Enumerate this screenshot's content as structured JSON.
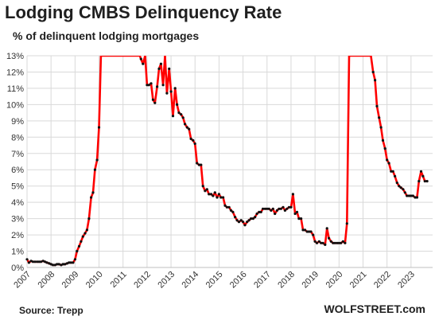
{
  "chart_data": {
    "type": "line",
    "title": "Lodging CMBS Delinquency Rate",
    "subtitle": "% of delinquent lodging mortgages",
    "source": "Source: Trepp",
    "brand": "WOLFSTREET.com",
    "ylim": [
      0,
      13
    ],
    "xlim": [
      2007,
      2023.9
    ],
    "y_ticks": [
      "0%",
      "1%",
      "2%",
      "3%",
      "4%",
      "5%",
      "6%",
      "7%",
      "8%",
      "9%",
      "10%",
      "11%",
      "12%",
      "13%"
    ],
    "x_ticks": [
      "2007",
      "2008",
      "2009",
      "2010",
      "2011",
      "2012",
      "2013",
      "2014",
      "2015",
      "2016",
      "2017",
      "2018",
      "2019",
      "2020",
      "2021",
      "2022",
      "2023"
    ],
    "grid": true,
    "series": [
      {
        "color": "#ff0000",
        "points": [
          [
            2007.0,
            0.5
          ],
          [
            2007.08,
            0.3
          ],
          [
            2007.17,
            0.4
          ],
          [
            2007.25,
            0.35
          ],
          [
            2007.33,
            0.35
          ],
          [
            2007.42,
            0.35
          ],
          [
            2007.5,
            0.35
          ],
          [
            2007.58,
            0.35
          ],
          [
            2007.67,
            0.4
          ],
          [
            2007.75,
            0.35
          ],
          [
            2007.83,
            0.3
          ],
          [
            2007.92,
            0.25
          ],
          [
            2008.0,
            0.2
          ],
          [
            2008.08,
            0.15
          ],
          [
            2008.17,
            0.15
          ],
          [
            2008.25,
            0.2
          ],
          [
            2008.33,
            0.2
          ],
          [
            2008.42,
            0.15
          ],
          [
            2008.5,
            0.2
          ],
          [
            2008.58,
            0.2
          ],
          [
            2008.67,
            0.25
          ],
          [
            2008.75,
            0.3
          ],
          [
            2008.83,
            0.3
          ],
          [
            2008.92,
            0.3
          ],
          [
            2009.0,
            0.5
          ],
          [
            2009.08,
            1.0
          ],
          [
            2009.17,
            1.3
          ],
          [
            2009.25,
            1.6
          ],
          [
            2009.33,
            1.9
          ],
          [
            2009.42,
            2.1
          ],
          [
            2009.5,
            2.3
          ],
          [
            2009.58,
            3.0
          ],
          [
            2009.67,
            4.3
          ],
          [
            2009.75,
            4.6
          ],
          [
            2009.83,
            6.0
          ],
          [
            2009.92,
            6.6
          ],
          [
            2010.0,
            8.6
          ],
          [
            2010.08,
            13.0
          ],
          [
            2011.7,
            13.0
          ],
          [
            2011.75,
            12.8
          ],
          [
            2011.83,
            12.5
          ],
          [
            2011.92,
            13.0
          ],
          [
            2012.0,
            11.2
          ],
          [
            2012.08,
            11.2
          ],
          [
            2012.17,
            11.3
          ],
          [
            2012.25,
            10.3
          ],
          [
            2012.33,
            10.1
          ],
          [
            2012.42,
            11.1
          ],
          [
            2012.5,
            12.2
          ],
          [
            2012.58,
            12.5
          ],
          [
            2012.67,
            11.2
          ],
          [
            2012.75,
            13.0
          ],
          [
            2012.83,
            10.7
          ],
          [
            2012.92,
            12.2
          ],
          [
            2013.0,
            10.8
          ],
          [
            2013.08,
            9.3
          ],
          [
            2013.17,
            11.0
          ],
          [
            2013.25,
            10.0
          ],
          [
            2013.33,
            9.5
          ],
          [
            2013.42,
            9.4
          ],
          [
            2013.5,
            9.2
          ],
          [
            2013.58,
            8.8
          ],
          [
            2013.67,
            8.6
          ],
          [
            2013.75,
            8.5
          ],
          [
            2013.83,
            7.9
          ],
          [
            2013.92,
            7.8
          ],
          [
            2014.0,
            7.6
          ],
          [
            2014.08,
            6.4
          ],
          [
            2014.17,
            6.3
          ],
          [
            2014.25,
            6.3
          ],
          [
            2014.33,
            5.0
          ],
          [
            2014.42,
            4.7
          ],
          [
            2014.5,
            4.8
          ],
          [
            2014.58,
            4.5
          ],
          [
            2014.67,
            4.5
          ],
          [
            2014.75,
            4.4
          ],
          [
            2014.83,
            4.6
          ],
          [
            2014.92,
            4.3
          ],
          [
            2015.0,
            4.5
          ],
          [
            2015.08,
            4.3
          ],
          [
            2015.17,
            4.3
          ],
          [
            2015.25,
            3.8
          ],
          [
            2015.33,
            3.7
          ],
          [
            2015.42,
            3.7
          ],
          [
            2015.5,
            3.5
          ],
          [
            2015.58,
            3.4
          ],
          [
            2015.67,
            3.1
          ],
          [
            2015.75,
            2.9
          ],
          [
            2015.83,
            2.8
          ],
          [
            2015.92,
            2.9
          ],
          [
            2016.0,
            2.8
          ],
          [
            2016.08,
            2.6
          ],
          [
            2016.17,
            2.8
          ],
          [
            2016.25,
            2.9
          ],
          [
            2016.33,
            3.0
          ],
          [
            2016.42,
            3.0
          ],
          [
            2016.5,
            3.1
          ],
          [
            2016.58,
            3.3
          ],
          [
            2016.67,
            3.4
          ],
          [
            2016.75,
            3.4
          ],
          [
            2016.83,
            3.6
          ],
          [
            2016.92,
            3.6
          ],
          [
            2017.0,
            3.6
          ],
          [
            2017.08,
            3.6
          ],
          [
            2017.17,
            3.5
          ],
          [
            2017.25,
            3.6
          ],
          [
            2017.33,
            3.3
          ],
          [
            2017.42,
            3.5
          ],
          [
            2017.5,
            3.6
          ],
          [
            2017.58,
            3.6
          ],
          [
            2017.67,
            3.7
          ],
          [
            2017.75,
            3.5
          ],
          [
            2017.83,
            3.6
          ],
          [
            2017.92,
            3.7
          ],
          [
            2018.0,
            3.7
          ],
          [
            2018.08,
            4.5
          ],
          [
            2018.17,
            3.3
          ],
          [
            2018.25,
            3.4
          ],
          [
            2018.33,
            3.0
          ],
          [
            2018.42,
            3.0
          ],
          [
            2018.5,
            2.3
          ],
          [
            2018.58,
            2.3
          ],
          [
            2018.67,
            2.2
          ],
          [
            2018.75,
            2.2
          ],
          [
            2018.83,
            2.2
          ],
          [
            2018.92,
            2.0
          ],
          [
            2019.0,
            1.6
          ],
          [
            2019.08,
            1.5
          ],
          [
            2019.17,
            1.6
          ],
          [
            2019.25,
            1.5
          ],
          [
            2019.33,
            1.5
          ],
          [
            2019.42,
            1.4
          ],
          [
            2019.5,
            2.4
          ],
          [
            2019.58,
            1.8
          ],
          [
            2019.67,
            1.6
          ],
          [
            2019.75,
            1.5
          ],
          [
            2019.83,
            1.5
          ],
          [
            2019.92,
            1.5
          ],
          [
            2020.0,
            1.5
          ],
          [
            2020.08,
            1.5
          ],
          [
            2020.17,
            1.6
          ],
          [
            2020.25,
            1.5
          ],
          [
            2020.33,
            2.7
          ],
          [
            2020.42,
            13.0
          ],
          [
            2021.33,
            13.0
          ],
          [
            2021.42,
            12.0
          ],
          [
            2021.5,
            11.5
          ],
          [
            2021.58,
            9.9
          ],
          [
            2021.67,
            9.2
          ],
          [
            2021.75,
            8.6
          ],
          [
            2021.83,
            7.8
          ],
          [
            2021.92,
            7.3
          ],
          [
            2022.0,
            6.6
          ],
          [
            2022.08,
            6.4
          ],
          [
            2022.17,
            5.9
          ],
          [
            2022.25,
            5.9
          ],
          [
            2022.33,
            5.6
          ],
          [
            2022.42,
            5.2
          ],
          [
            2022.5,
            5.0
          ],
          [
            2022.58,
            4.9
          ],
          [
            2022.67,
            4.8
          ],
          [
            2022.75,
            4.6
          ],
          [
            2022.83,
            4.4
          ],
          [
            2022.92,
            4.4
          ],
          [
            2023.0,
            4.4
          ],
          [
            2023.08,
            4.4
          ],
          [
            2023.17,
            4.3
          ],
          [
            2023.25,
            4.3
          ],
          [
            2023.33,
            5.3
          ],
          [
            2023.42,
            5.9
          ],
          [
            2023.5,
            5.6
          ],
          [
            2023.58,
            5.3
          ],
          [
            2023.67,
            5.3
          ]
        ]
      }
    ]
  }
}
